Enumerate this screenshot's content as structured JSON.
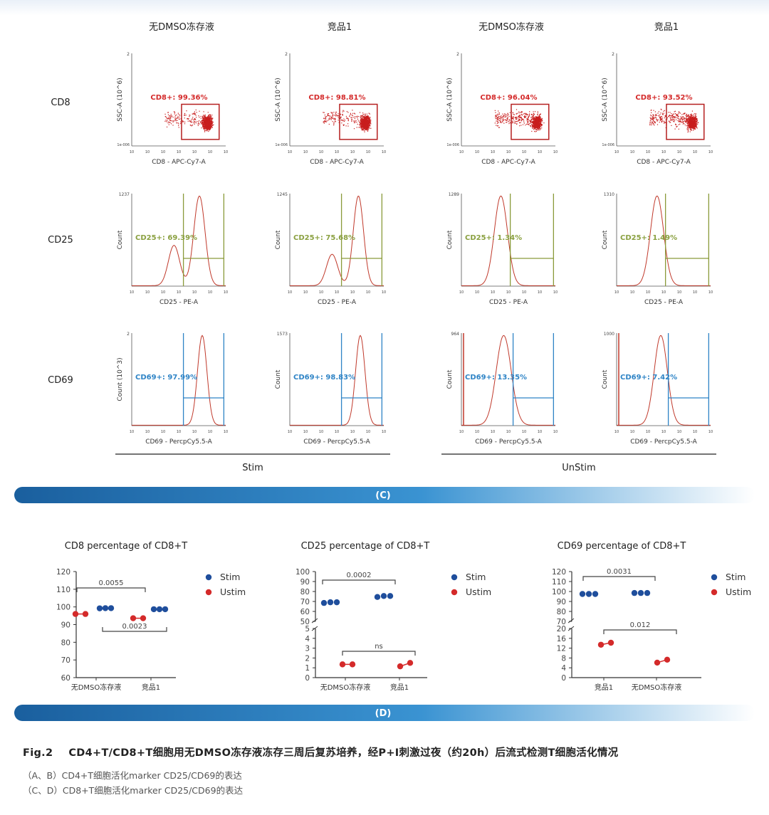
{
  "colors": {
    "red": "#d42a2a",
    "blue": "#1f4e9c",
    "green": "#8aa040",
    "gate_blue": "#2f84c6",
    "banner": "#1f6fae"
  },
  "column_headers": [
    "无DMSO冻存液",
    "竞品1",
    "无DMSO冻存液",
    "竞品1"
  ],
  "row_labels": [
    "CD8",
    "CD25",
    "CD69"
  ],
  "group_labels": {
    "stim": "Stim",
    "unstim": "UnStim"
  },
  "panel_labels": {
    "c": "(C)",
    "d": "(D)"
  },
  "flow_rows": [
    {
      "x_label": "CD8 - APC-Cy7-A",
      "y_label": "SSC-A (10^6)",
      "gate_prefix": "CD8+: ",
      "percents": [
        "99.36%",
        "98.81%",
        "96.04%",
        "93.52%"
      ],
      "y_max_ticks": [
        "2",
        "2",
        "2",
        "2"
      ],
      "y_min_tick": "1e-006"
    },
    {
      "x_label": "CD25 - PE-A",
      "y_label": "Count",
      "gate_prefix": "CD25+: ",
      "percents": [
        "69.39%",
        "75.68%",
        "1.34%",
        "1.49%"
      ],
      "y_max_ticks": [
        "1237",
        "1245",
        "1289",
        "1310"
      ]
    },
    {
      "x_label": "CD69 - PercpCy5.5-A",
      "y_label": "Count",
      "y_label_first": "Count (10^3)",
      "gate_prefix": "CD69+: ",
      "percents": [
        "97.99%",
        "98.83%",
        "13.35%",
        "7.42%"
      ],
      "y_max_ticks": [
        "2",
        "1573",
        "964",
        "1000"
      ]
    }
  ],
  "chart_data": [
    {
      "type": "scatter",
      "title": "CD8 percentage of CD8+T",
      "categories": [
        "无DMSO冻存液",
        "竞品1"
      ],
      "yticks": [
        60,
        70,
        80,
        90,
        100,
        110,
        120
      ],
      "ylim": [
        60,
        120
      ],
      "series": [
        {
          "name": "Stim",
          "values": [
            [
              99.2,
              99.3,
              99.3
            ],
            [
              98.7,
              98.7,
              98.7
            ]
          ]
        },
        {
          "name": "Ustim",
          "values": [
            [
              96.0,
              96.0
            ],
            [
              93.6,
              93.6
            ]
          ]
        }
      ],
      "annotations": [
        {
          "text": "0.0055",
          "between": "Stim"
        },
        {
          "text": "0.0023",
          "between": "Ustim"
        }
      ],
      "legend": "right"
    },
    {
      "type": "scatter",
      "title": "CD25 percentage of CD8+T",
      "categories": [
        "无DMSO冻存液",
        "竞品1"
      ],
      "broken_axis": {
        "upper": [
          50,
          100
        ],
        "lower": [
          0,
          5
        ]
      },
      "yticks_upper": [
        50,
        60,
        70,
        80,
        90,
        100
      ],
      "yticks_lower": [
        0,
        1,
        2,
        3,
        4,
        5
      ],
      "series": [
        {
          "name": "Stim",
          "values": [
            [
              68.5,
              69.2,
              69.2
            ],
            [
              74.5,
              75.5,
              75.5
            ]
          ]
        },
        {
          "name": "Ustim",
          "values": [
            [
              1.35,
              1.35
            ],
            [
              1.15,
              1.5
            ]
          ]
        }
      ],
      "annotations": [
        {
          "text": "0.0002",
          "between": "Stim"
        },
        {
          "text": "ns",
          "between": "Ustim"
        }
      ],
      "legend": "right"
    },
    {
      "type": "scatter",
      "title": "CD69 percentage of CD8+T",
      "categories": [
        "竞品1",
        "无DMSO冻存液"
      ],
      "broken_axis": {
        "upper": [
          70,
          120
        ],
        "lower": [
          0,
          20
        ]
      },
      "yticks_upper": [
        70,
        80,
        90,
        100,
        110,
        120
      ],
      "yticks_lower": [
        0,
        4,
        8,
        12,
        16,
        20
      ],
      "series": [
        {
          "name": "Stim",
          "values": [
            [
              97.5,
              97.5,
              97.5
            ],
            [
              98.5,
              98.5,
              98.5
            ]
          ]
        },
        {
          "name": "Ustim",
          "values": [
            [
              13.4,
              14.2
            ],
            [
              6.1,
              7.3
            ]
          ]
        }
      ],
      "annotations": [
        {
          "text": "0.0031",
          "between": "Stim"
        },
        {
          "text": "0.012",
          "between": "Ustim"
        }
      ],
      "legend": "right"
    }
  ],
  "caption": {
    "fig": "Fig.2",
    "title": "CD4+T/CD8+T细胞用无DMSO冻存液冻存三周后复苏培养，经P+I刺激过夜（约20h）后流式检测T细胞活化情况",
    "lines": [
      "（A、B）CD4+T细胞活化marker CD25/CD69的表达",
      "（C、D）CD8+T细胞活化marker CD25/CD69的表达"
    ]
  }
}
